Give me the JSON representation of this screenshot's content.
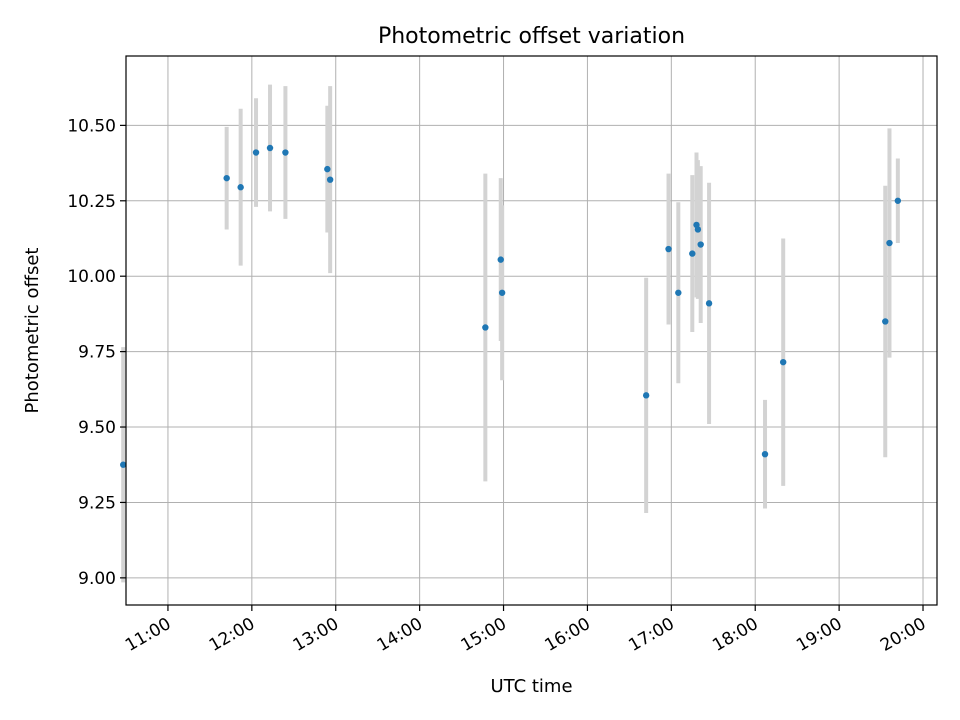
{
  "chart_data": {
    "type": "scatter",
    "title": "Photometric offset variation",
    "xlabel": "UTC time",
    "ylabel": "Photometric offset",
    "xlim": [
      "10:30",
      "20:10"
    ],
    "ylim": [
      8.91,
      10.73
    ],
    "xticks": [
      "11:00",
      "12:00",
      "13:00",
      "14:00",
      "15:00",
      "16:00",
      "17:00",
      "18:00",
      "19:00",
      "20:00"
    ],
    "yticks": [
      "9.00",
      "9.25",
      "9.50",
      "9.75",
      "10.00",
      "10.25",
      "10.50"
    ],
    "grid": true,
    "legend": "none",
    "marker_color": "#1f77b4",
    "errorbar_color": "#d3d3d3",
    "points": [
      {
        "t": "10:28",
        "y": 9.375,
        "err": 0.39
      },
      {
        "t": "11:42",
        "y": 10.325,
        "err": 0.17
      },
      {
        "t": "11:52",
        "y": 10.295,
        "err": 0.26
      },
      {
        "t": "12:03",
        "y": 10.41,
        "err": 0.18
      },
      {
        "t": "12:13",
        "y": 10.425,
        "err": 0.21
      },
      {
        "t": "12:24",
        "y": 10.41,
        "err": 0.22
      },
      {
        "t": "12:54",
        "y": 10.355,
        "err": 0.21
      },
      {
        "t": "12:56",
        "y": 10.32,
        "err": 0.31
      },
      {
        "t": "14:47",
        "y": 9.83,
        "err": 0.51
      },
      {
        "t": "14:58",
        "y": 10.055,
        "err": 0.27
      },
      {
        "t": "14:59",
        "y": 9.945,
        "err": 0.29
      },
      {
        "t": "16:42",
        "y": 9.605,
        "err": 0.39
      },
      {
        "t": "16:58",
        "y": 10.09,
        "err": 0.25
      },
      {
        "t": "17:05",
        "y": 9.945,
        "err": 0.3
      },
      {
        "t": "17:15",
        "y": 10.075,
        "err": 0.26
      },
      {
        "t": "17:18",
        "y": 10.17,
        "err": 0.24
      },
      {
        "t": "17:19",
        "y": 10.155,
        "err": 0.23
      },
      {
        "t": "17:21",
        "y": 10.105,
        "err": 0.26
      },
      {
        "t": "17:27",
        "y": 9.91,
        "err": 0.4
      },
      {
        "t": "18:07",
        "y": 9.41,
        "err": 0.18
      },
      {
        "t": "18:20",
        "y": 9.715,
        "err": 0.41
      },
      {
        "t": "19:33",
        "y": 9.85,
        "err": 0.45
      },
      {
        "t": "19:36",
        "y": 10.11,
        "err": 0.38
      },
      {
        "t": "19:42",
        "y": 10.25,
        "err": 0.14
      }
    ]
  }
}
